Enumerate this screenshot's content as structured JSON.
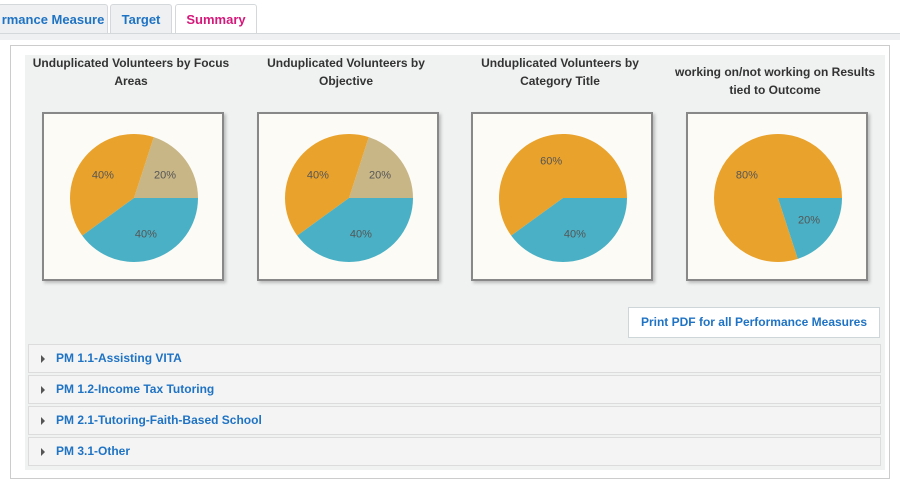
{
  "tabs": [
    "rmance Measure",
    "Target",
    "Summary"
  ],
  "charts": [
    {
      "type": "pie",
      "title": "Unduplicated Volunteers by Focus Areas",
      "values": [
        20,
        40,
        40
      ],
      "value_labels": [
        "20%",
        "40%",
        "40%"
      ],
      "colors": [
        "#c8b687",
        "#e9a22c",
        "#4ab0c5"
      ]
    },
    {
      "type": "pie",
      "title": "Unduplicated Volunteers by Objective",
      "values": [
        20,
        40,
        40
      ],
      "value_labels": [
        "20%",
        "40%",
        "40%"
      ],
      "colors": [
        "#c8b687",
        "#e9a22c",
        "#4ab0c5"
      ]
    },
    {
      "type": "pie",
      "title": "Unduplicated Volunteers by Category Title",
      "values": [
        60,
        40
      ],
      "value_labels": [
        "60%",
        "40%"
      ],
      "colors": [
        "#e9a22c",
        "#4ab0c5"
      ]
    },
    {
      "type": "pie",
      "title": "working on/not working on Results tied to Outcome",
      "values": [
        80,
        20
      ],
      "value_labels": [
        "80%",
        "20%"
      ],
      "colors": [
        "#e9a22c",
        "#4ab0c5"
      ]
    }
  ],
  "print_button": "Print PDF for all Performance Measures",
  "sections": [
    "PM 1.1-Assisting VITA",
    "PM 1.2-Income Tax Tutoring",
    "PM 2.1-Tutoring-Faith-Based School",
    "PM 3.1-Other"
  ]
}
